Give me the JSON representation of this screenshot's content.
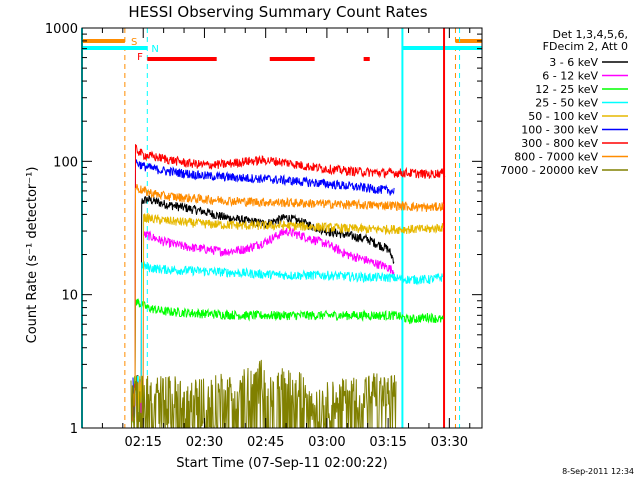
{
  "chart_data": {
    "type": "line",
    "title": "HESSI Observing Summary Count Rates",
    "xlabel": "Start Time (07-Sep-11 02:00:22)",
    "ylabel": "Count Rate (s⁻¹ detector⁻¹)",
    "ylog": true,
    "ylim": [
      1,
      1000
    ],
    "xlim_minutes": [
      0,
      98
    ],
    "x_ticks": [
      "02:15",
      "02:30",
      "02:45",
      "03:00",
      "03:15",
      "03:30"
    ],
    "x_tick_minutes": [
      15,
      30,
      45,
      60,
      75,
      90
    ],
    "y_ticks": [
      "1",
      "10",
      "100",
      "1000"
    ],
    "y_tick_values": [
      1,
      10,
      100,
      1000
    ],
    "legend_header": [
      "Det 1,3,4,5,6,",
      "FDecim 2, Att 0"
    ],
    "legend_position": "top-right",
    "series": [
      {
        "name": "3 - 6 keV",
        "color": "#000000",
        "t_start": 13.3,
        "t_end": 76.5,
        "x": [
          14.5,
          16,
          20,
          25,
          30,
          35,
          40,
          45,
          50,
          55,
          60,
          65,
          70,
          75,
          76.5
        ],
        "y": [
          50,
          52,
          48,
          45,
          42,
          38,
          36,
          34,
          38,
          34,
          30,
          28,
          26,
          22,
          18
        ]
      },
      {
        "name": "6 - 12 keV",
        "color": "#ff00ff",
        "t_start": 13.3,
        "t_end": 76.5,
        "x": [
          15,
          16,
          20,
          25,
          30,
          35,
          40,
          45,
          48,
          50,
          55,
          60,
          65,
          70,
          75,
          76.5
        ],
        "y": [
          28,
          28,
          25,
          23,
          22,
          21,
          22,
          25,
          28,
          30,
          27,
          24,
          20,
          18,
          16,
          15
        ]
      },
      {
        "name": "12 - 25 keV",
        "color": "#00ff00",
        "t_start": 12.5,
        "t_end": 88.5,
        "x": [
          13,
          16,
          20,
          30,
          40,
          50,
          60,
          70,
          75,
          77,
          80,
          85,
          88
        ],
        "y": [
          9,
          8,
          7.5,
          7.2,
          7,
          7,
          7,
          7,
          7,
          7,
          6.5,
          6.8,
          6.5
        ]
      },
      {
        "name": "25 - 50 keV",
        "color": "#00ffff",
        "t_start": 13.3,
        "t_end": 88.5,
        "x": [
          14.5,
          16,
          20,
          30,
          40,
          50,
          60,
          70,
          75,
          80,
          85,
          88
        ],
        "y": [
          17,
          16,
          15.5,
          15,
          14.5,
          14,
          14,
          13.5,
          13.5,
          13,
          13,
          13.5
        ]
      },
      {
        "name": "50 - 100 keV",
        "color": "#e6b800",
        "t_start": 13.3,
        "t_end": 88.5,
        "x": [
          15,
          20,
          30,
          40,
          50,
          60,
          70,
          75,
          80,
          85,
          88
        ],
        "y": [
          38,
          36,
          34,
          33,
          33,
          32,
          31,
          31,
          31,
          31,
          32
        ]
      },
      {
        "name": "100 - 300 keV",
        "color": "#0000ff",
        "t_start": 12.5,
        "t_end": 76.5,
        "x": [
          13,
          15,
          20,
          30,
          40,
          45,
          50,
          60,
          70,
          76
        ],
        "y": [
          100,
          92,
          85,
          78,
          75,
          74,
          72,
          68,
          63,
          60
        ]
      },
      {
        "name": "300 - 800 keV",
        "color": "#ff0000",
        "t_start": 12.5,
        "t_end": 89,
        "x": [
          13,
          15,
          20,
          25,
          30,
          35,
          40,
          45,
          50,
          55,
          60,
          65,
          70,
          75,
          80,
          85,
          88
        ],
        "y": [
          125,
          112,
          105,
          98,
          94,
          95,
          100,
          102,
          98,
          92,
          88,
          85,
          83,
          82,
          82,
          80,
          82
        ]
      },
      {
        "name": "800 - 7000 keV",
        "color": "#ff8c00",
        "t_start": 12.5,
        "t_end": 88.5,
        "x": [
          13,
          15,
          20,
          30,
          40,
          50,
          60,
          70,
          75,
          80,
          85,
          88
        ],
        "y": [
          65,
          60,
          55,
          52,
          50,
          49,
          48,
          47,
          47,
          46,
          45,
          46
        ]
      },
      {
        "name": "7000 - 20000 keV",
        "color": "#808000",
        "t_start": 12,
        "t_end": 77,
        "x": [
          34,
          37,
          40,
          42,
          44,
          46,
          48,
          50,
          52,
          54,
          56,
          58,
          62,
          66,
          70,
          72,
          74,
          76
        ],
        "y": [
          2,
          1.8,
          2.2,
          2,
          2.5,
          1.8,
          2.2,
          2.1,
          1.9,
          2,
          1.8,
          1.6,
          1.7,
          1.8,
          1.9,
          2,
          1.8,
          1.9
        ]
      }
    ],
    "flag_annotations": [
      {
        "label": "S",
        "color": "#ff8c00",
        "line_style": "dashed",
        "vertical_at_minutes": [
          10.5,
          91.5
        ],
        "bar_segments": [
          [
            0,
            10.5
          ],
          [
            91.5,
            98
          ]
        ]
      },
      {
        "label": "N",
        "color": "#00ffff",
        "line_style": "dashed",
        "vertical_at_minutes": [
          16,
          92.5
        ],
        "bar_segments": [
          [
            0,
            16
          ],
          [
            78.5,
            98
          ]
        ]
      },
      {
        "label": "F",
        "color": "#ff0000",
        "line_style": "solid",
        "bar_segments": [
          [
            16,
            33
          ],
          [
            46,
            57
          ],
          [
            69,
            70.5
          ]
        ]
      }
    ],
    "shaded_vertical_lines": [
      {
        "color": "#00ffff",
        "at_minutes": [
          0,
          78.5
        ]
      },
      {
        "color": "#ff0000",
        "at_minutes": [
          88.7
        ]
      }
    ],
    "footer_timestamp": "8-Sep-2011 12:34"
  }
}
